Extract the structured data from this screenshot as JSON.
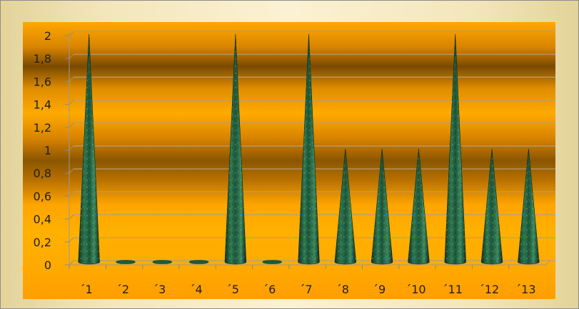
{
  "chart_data": {
    "type": "bar",
    "shape": "cone",
    "categories": [
      "´1",
      "´2",
      "´3",
      "´4",
      "´5",
      "´6",
      "´7",
      "´8",
      "´9",
      "´10",
      "´11",
      "´12",
      "´13"
    ],
    "values": [
      2,
      0,
      0,
      0,
      2,
      0,
      2,
      1,
      1,
      1,
      2,
      1,
      1
    ],
    "ylim": [
      0,
      2
    ],
    "yticks": [
      "0",
      "0,2",
      "0,4",
      "0,6",
      "0,8",
      "1",
      "1,2",
      "1,4",
      "1,6",
      "1,8",
      "2"
    ],
    "grid": true,
    "colors": {
      "bar": "#1f5a3c",
      "bar_highlight": "#5aa77a",
      "plot_dark": "#7a4a00",
      "plot_bright": "#ffa800",
      "frame_bg": "#f3e6bb"
    }
  }
}
